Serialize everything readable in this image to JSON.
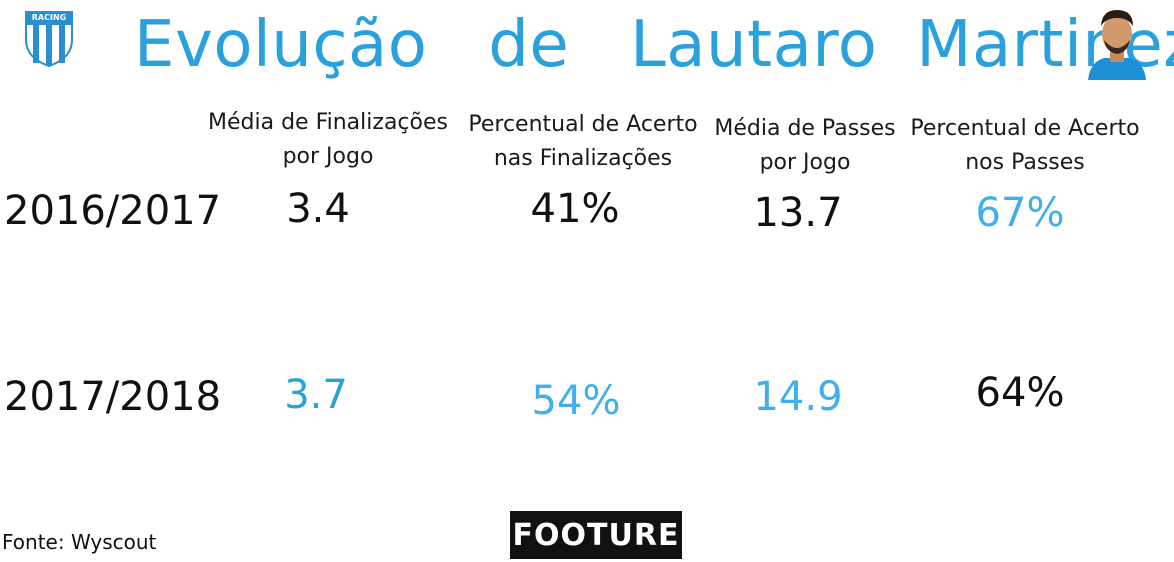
{
  "title_words": [
    "Evolução",
    "de",
    "Lautaro",
    "Martinez"
  ],
  "club_logo_text": "RACING",
  "headers": [
    {
      "line1": "Média de Finalizações",
      "line2": "por Jogo"
    },
    {
      "line1": "Percentual de Acerto",
      "line2": "nas Finalizações"
    },
    {
      "line1": "Média de Passes",
      "line2": "por Jogo"
    },
    {
      "line1": "Percentual de Acerto",
      "line2": "nos Passes"
    }
  ],
  "rows": [
    {
      "season": "2016/2017",
      "values": [
        "3.4",
        "41%",
        "13.7",
        "67%"
      ]
    },
    {
      "season": "2017/2018",
      "values": [
        "3.7",
        "54%",
        "14.9",
        "64%"
      ]
    }
  ],
  "colors": {
    "accent_blue": "#2aa1dd",
    "light_blue": "#3fb0ea",
    "black": "#111111"
  },
  "source": "Fonte: Wyscout",
  "brand": "FOOTURE"
}
